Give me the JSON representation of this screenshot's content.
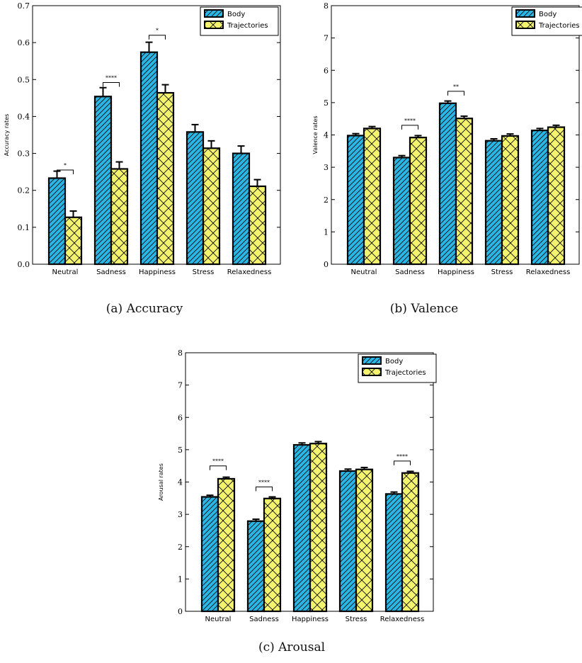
{
  "colors": {
    "body": "#2ab7e6",
    "trajectories": "#f4f36d",
    "edge": "#000000"
  },
  "captions": [
    "(a) Accuracy",
    "(b) Valence",
    "(c) Arousal"
  ],
  "chart_data": [
    {
      "type": "bar",
      "title": "",
      "xlabel": "",
      "ylabel": "Accuracy rates",
      "ylim": [
        0,
        0.7
      ],
      "yticks": [
        "0.0",
        "0.1",
        "0.2",
        "0.3",
        "0.4",
        "0.5",
        "0.6",
        "0.7"
      ],
      "categories": [
        "Neutral",
        "Sadness",
        "Happiness",
        "Stress",
        "Relaxedness"
      ],
      "series": [
        {
          "name": "Body",
          "values": [
            0.233,
            0.454,
            0.574,
            0.358,
            0.3
          ],
          "errors": [
            0.019,
            0.024,
            0.027,
            0.02,
            0.02
          ],
          "hatch": "diag",
          "color_key": "body"
        },
        {
          "name": "Trajectories",
          "values": [
            0.127,
            0.258,
            0.464,
            0.314,
            0.211
          ],
          "errors": [
            0.017,
            0.019,
            0.022,
            0.02,
            0.018
          ],
          "hatch": "cross",
          "color_key": "trajectories"
        }
      ],
      "significance": [
        {
          "category": "Neutral",
          "label": "*",
          "level": 0.255
        },
        {
          "category": "Sadness",
          "label": "****",
          "level": 0.492
        },
        {
          "category": "Happiness",
          "label": "*",
          "level": 0.62
        }
      ],
      "legend": "top-right",
      "grid": false
    },
    {
      "type": "bar",
      "title": "",
      "xlabel": "",
      "ylabel": "Valence rates",
      "ylim": [
        0,
        8
      ],
      "yticks": [
        "0",
        "1",
        "2",
        "3",
        "4",
        "5",
        "6",
        "7",
        "8"
      ],
      "categories": [
        "Neutral",
        "Sadness",
        "Happiness",
        "Stress",
        "Relaxedness"
      ],
      "series": [
        {
          "name": "Body",
          "values": [
            3.98,
            3.3,
            4.98,
            3.82,
            4.14
          ],
          "errors": [
            0.06,
            0.06,
            0.07,
            0.06,
            0.06
          ],
          "hatch": "diag",
          "color_key": "body"
        },
        {
          "name": "Trajectories",
          "values": [
            4.2,
            3.92,
            4.51,
            3.97,
            4.24
          ],
          "errors": [
            0.06,
            0.06,
            0.07,
            0.06,
            0.06
          ],
          "hatch": "cross",
          "color_key": "trajectories"
        }
      ],
      "significance": [
        {
          "category": "Sadness",
          "label": "****",
          "level": 4.3
        },
        {
          "category": "Happiness",
          "label": "**",
          "level": 5.35
        }
      ],
      "legend": "top-right",
      "grid": false
    },
    {
      "type": "bar",
      "title": "",
      "xlabel": "",
      "ylabel": "Arousal rates",
      "ylim": [
        0,
        8
      ],
      "yticks": [
        "0",
        "1",
        "2",
        "3",
        "4",
        "5",
        "6",
        "7",
        "8"
      ],
      "categories": [
        "Neutral",
        "Sadness",
        "Happiness",
        "Stress",
        "Relaxedness"
      ],
      "series": [
        {
          "name": "Body",
          "values": [
            3.54,
            2.79,
            5.15,
            4.34,
            3.63
          ],
          "errors": [
            0.05,
            0.06,
            0.06,
            0.06,
            0.06
          ],
          "hatch": "diag",
          "color_key": "body"
        },
        {
          "name": "Trajectories",
          "values": [
            4.1,
            3.49,
            5.19,
            4.39,
            4.28
          ],
          "errors": [
            0.05,
            0.05,
            0.06,
            0.06,
            0.05
          ],
          "hatch": "cross",
          "color_key": "trajectories"
        }
      ],
      "significance": [
        {
          "category": "Neutral",
          "label": "****",
          "level": 4.5
        },
        {
          "category": "Sadness",
          "label": "****",
          "level": 3.85
        },
        {
          "category": "Relaxedness",
          "label": "****",
          "level": 4.65
        }
      ],
      "legend": "top-right",
      "grid": false
    }
  ]
}
